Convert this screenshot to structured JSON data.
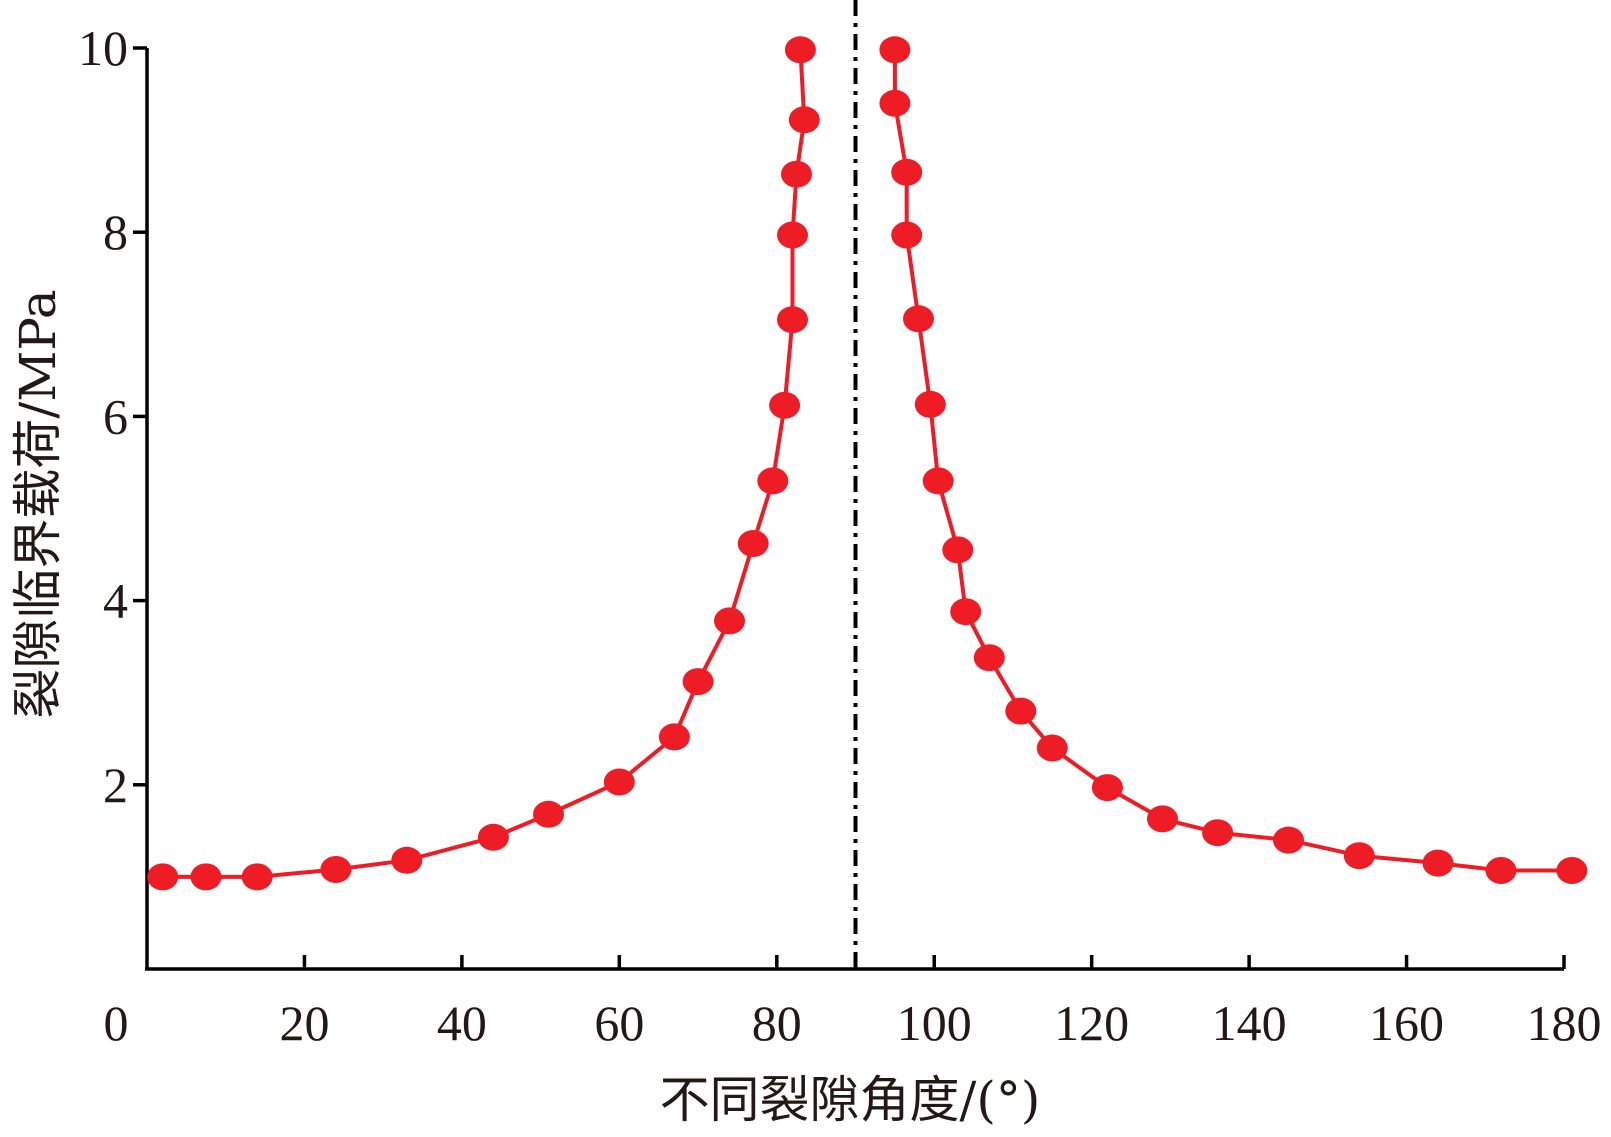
{
  "chart_data": {
    "type": "line",
    "title": "",
    "xlabel": "不同裂隙角度/(°)",
    "ylabel": "裂隙临界载荷/MPa",
    "xlim": [
      0,
      180
    ],
    "ylim": [
      0,
      10
    ],
    "x_ticks": [
      0,
      20,
      40,
      60,
      80,
      100,
      120,
      140,
      160,
      180
    ],
    "y_ticks": [
      2,
      4,
      6,
      8,
      10
    ],
    "grid": false,
    "legend": "none",
    "reference_line": {
      "x": 90,
      "style": "dash-dot",
      "color": "#000000"
    },
    "series": [
      {
        "color": "#ee1c25",
        "marker": "circle",
        "segments": [
          [
            [
              2,
              1.0
            ],
            [
              7.5,
              1.0
            ],
            [
              14,
              1.0
            ],
            [
              24,
              1.08
            ],
            [
              33,
              1.18
            ],
            [
              44,
              1.43
            ],
            [
              51,
              1.68
            ],
            [
              60,
              2.03
            ],
            [
              67,
              2.52
            ],
            [
              70,
              3.12
            ],
            [
              74,
              3.78
            ],
            [
              77,
              4.62
            ],
            [
              79.5,
              5.3
            ],
            [
              81,
              6.12
            ],
            [
              82,
              7.05
            ],
            [
              82,
              7.97
            ],
            [
              82.5,
              8.63
            ],
            [
              83.5,
              9.22
            ],
            [
              83,
              9.98
            ]
          ],
          [
            [
              95,
              9.98
            ],
            [
              95,
              9.4
            ],
            [
              96.5,
              8.65
            ],
            [
              96.5,
              7.97
            ],
            [
              98,
              7.06
            ],
            [
              99.5,
              6.13
            ],
            [
              100.5,
              5.3
            ],
            [
              103,
              4.55
            ],
            [
              104,
              3.88
            ],
            [
              107,
              3.38
            ],
            [
              111,
              2.8
            ],
            [
              115,
              2.4
            ],
            [
              122,
              1.97
            ],
            [
              129,
              1.63
            ],
            [
              136,
              1.48
            ],
            [
              145,
              1.4
            ],
            [
              154,
              1.23
            ],
            [
              164,
              1.15
            ],
            [
              172,
              1.07
            ],
            [
              181,
              1.07
            ]
          ]
        ]
      }
    ]
  }
}
